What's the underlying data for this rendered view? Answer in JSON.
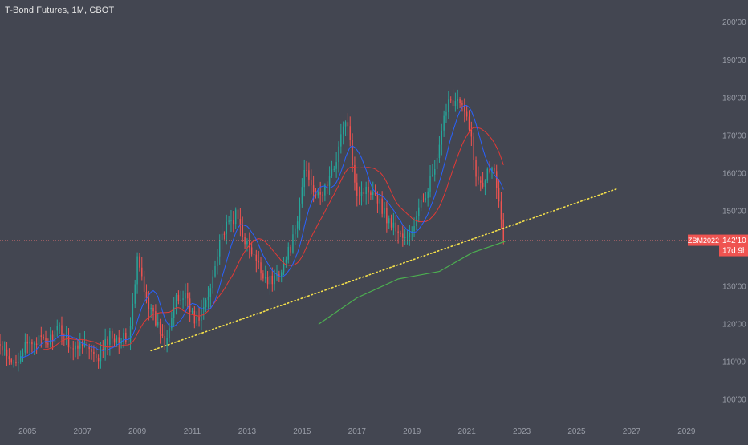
{
  "header": {
    "title": "T-Bond Futures, 1M, CBOT"
  },
  "colors": {
    "background": "#434651",
    "candle_up": "#26a69a",
    "candle_down": "#ef5350",
    "ma_blue": "#2962ff",
    "ma_red": "#e53935",
    "ma_green": "#4caf50",
    "trendline": "#f5e04a",
    "price_line": "#e57373",
    "axis_text": "#9a9ea8"
  },
  "chart_data": {
    "type": "candlestick",
    "interval": "1M",
    "xlim": [
      2004.0,
      2030.1
    ],
    "ylim": [
      95,
      206
    ],
    "x_ticks": [
      {
        "value": 2005,
        "label": "2005"
      },
      {
        "value": 2007,
        "label": "2007"
      },
      {
        "value": 2009,
        "label": "2009"
      },
      {
        "value": 2011,
        "label": "2011"
      },
      {
        "value": 2013,
        "label": "2013"
      },
      {
        "value": 2015,
        "label": "2015"
      },
      {
        "value": 2017,
        "label": "2017"
      },
      {
        "value": 2019,
        "label": "2019"
      },
      {
        "value": 2021,
        "label": "2021"
      },
      {
        "value": 2023,
        "label": "2023"
      },
      {
        "value": 2025,
        "label": "2025"
      },
      {
        "value": 2027,
        "label": "2027"
      },
      {
        "value": 2029,
        "label": "2029"
      }
    ],
    "y_ticks": [
      {
        "value": 100,
        "label": "100'00"
      },
      {
        "value": 110,
        "label": "110'00"
      },
      {
        "value": 120,
        "label": "120'00"
      },
      {
        "value": 130,
        "label": "130'00"
      },
      {
        "value": 150,
        "label": "150'00"
      },
      {
        "value": 160,
        "label": "160'00"
      },
      {
        "value": 170,
        "label": "170'00"
      },
      {
        "value": 180,
        "label": "180'00"
      },
      {
        "value": 190,
        "label": "190'00"
      },
      {
        "value": 200,
        "label": "200'00"
      }
    ],
    "price_waypoints": [
      [
        2004.0,
        114
      ],
      [
        2004.4,
        109
      ],
      [
        2004.8,
        113
      ],
      [
        2005.3,
        116
      ],
      [
        2005.7,
        115
      ],
      [
        2006.2,
        119
      ],
      [
        2006.7,
        113
      ],
      [
        2007.0,
        116
      ],
      [
        2007.5,
        110
      ],
      [
        2008.0,
        117
      ],
      [
        2008.7,
        116
      ],
      [
        2008.9,
        129
      ],
      [
        2009.0,
        137
      ],
      [
        2009.5,
        123
      ],
      [
        2010.0,
        116
      ],
      [
        2010.4,
        126
      ],
      [
        2010.8,
        128
      ],
      [
        2011.1,
        120
      ],
      [
        2011.6,
        127
      ],
      [
        2012.0,
        143
      ],
      [
        2012.6,
        149
      ],
      [
        2013.0,
        141
      ],
      [
        2013.5,
        134
      ],
      [
        2013.9,
        131
      ],
      [
        2014.4,
        137
      ],
      [
        2014.8,
        145
      ],
      [
        2015.1,
        162
      ],
      [
        2015.6,
        153
      ],
      [
        2016.1,
        160
      ],
      [
        2016.6,
        175
      ],
      [
        2017.0,
        155
      ],
      [
        2017.6,
        156
      ],
      [
        2018.1,
        148
      ],
      [
        2018.8,
        142
      ],
      [
        2019.0,
        145
      ],
      [
        2019.6,
        157
      ],
      [
        2019.9,
        162
      ],
      [
        2020.3,
        180
      ],
      [
        2020.7,
        179
      ],
      [
        2021.1,
        173
      ],
      [
        2021.3,
        160
      ],
      [
        2021.6,
        158
      ],
      [
        2021.9,
        163
      ],
      [
        2022.1,
        157
      ],
      [
        2022.4,
        142
      ]
    ],
    "last_price": 142.3,
    "last_price_label": "142'10",
    "symbol_label": "ZBM2022",
    "countdown_label": "17d 9h",
    "trendline": {
      "style": "dotted",
      "points": [
        [
          2009.5,
          113
        ],
        [
          2026.5,
          156
        ]
      ]
    },
    "ma_green": {
      "name": "",
      "points": [
        [
          2015.6,
          120
        ],
        [
          2017.0,
          127
        ],
        [
          2018.5,
          132
        ],
        [
          2020.0,
          134
        ],
        [
          2021.2,
          139
        ],
        [
          2022.0,
          141
        ],
        [
          2022.4,
          142
        ]
      ]
    },
    "ma_blue_period_months": 10,
    "ma_red_period_months": 20
  }
}
